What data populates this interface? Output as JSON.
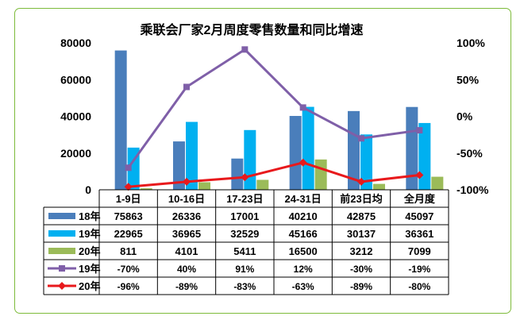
{
  "chart_data": {
    "type": "bar+line+table",
    "title": "乘联会厂家2月周度零售数量和同比增速",
    "categories": [
      "1-9日",
      "10-16日",
      "17-23日",
      "24-31日",
      "前23日均",
      "全月度"
    ],
    "left_axis": {
      "min": 0,
      "max": 80000,
      "ticks": [
        "0",
        "20000",
        "40000",
        "60000",
        "80000"
      ]
    },
    "right_axis": {
      "min": -100,
      "max": 100,
      "ticks": [
        "-100%",
        "-50%",
        "0%",
        "50%",
        "100%"
      ]
    },
    "bar_series": [
      {
        "name": "18年",
        "color": "#4a7ebb",
        "values": [
          75863,
          26336,
          17001,
          40210,
          42875,
          45097
        ],
        "labels": [
          "75863",
          "26336",
          "17001",
          "40210",
          "42875",
          "45097"
        ]
      },
      {
        "name": "19年",
        "color": "#00b0f0",
        "values": [
          22965,
          36965,
          32529,
          45166,
          30137,
          36361
        ],
        "labels": [
          "22965",
          "36965",
          "32529",
          "45166",
          "30137",
          "36361"
        ]
      },
      {
        "name": "20年",
        "color": "#9bbb59",
        "values": [
          811,
          4101,
          5411,
          16500,
          3212,
          7099
        ],
        "labels": [
          "811",
          "4101",
          "5411",
          "16500",
          "3212",
          "7099"
        ]
      }
    ],
    "line_series": [
      {
        "name": "19年",
        "color": "#7f5fa8",
        "marker": "square",
        "values": [
          -70,
          40,
          91,
          12,
          -30,
          -19
        ],
        "labels": [
          "-70%",
          "40%",
          "91%",
          "12%",
          "-30%",
          "-19%"
        ]
      },
      {
        "name": "20年",
        "color": "#e8191c",
        "marker": "diamond",
        "values": [
          -96,
          -89,
          -83,
          -63,
          -89,
          -80
        ],
        "labels": [
          "-96%",
          "-89%",
          "-83%",
          "-63%",
          "-89%",
          "-80%"
        ]
      }
    ]
  }
}
